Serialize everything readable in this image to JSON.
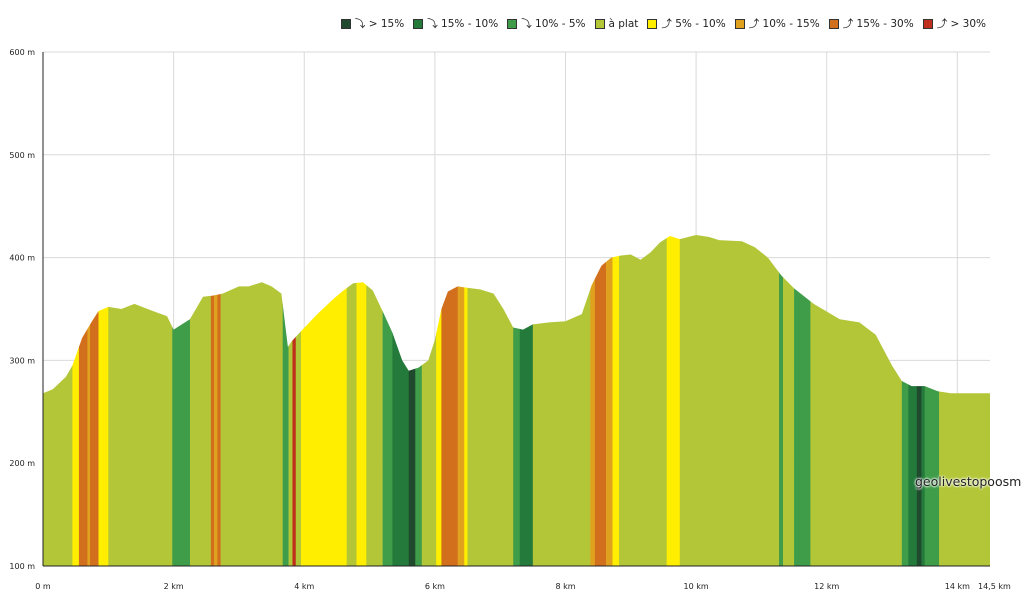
{
  "legend": [
    {
      "label": "⤵ > 15%",
      "color": "#1f4a2e"
    },
    {
      "label": "⤵ 15% - 10%",
      "color": "#237a3a"
    },
    {
      "label": "⤵ 10% - 5%",
      "color": "#3f9c49"
    },
    {
      "label": "à plat",
      "color": "#b3c637"
    },
    {
      "label": "⤴ 5% - 10%",
      "color": "#ffee00"
    },
    {
      "label": "⤴ 10% - 15%",
      "color": "#e0a21e"
    },
    {
      "label": "⤴ 15% - 30%",
      "color": "#d26f1c"
    },
    {
      "label": "⤴ > 30%",
      "color": "#bf2f1b"
    }
  ],
  "watermark": "geolivestopoosm",
  "chart_data": {
    "type": "area",
    "title": "",
    "xlabel": "",
    "ylabel": "",
    "xlim": [
      0,
      14.5
    ],
    "ylim": [
      100,
      600
    ],
    "grid": true,
    "legend_position": "top-right",
    "y_ticks": [
      {
        "value": 100,
        "label": "100 m"
      },
      {
        "value": 200,
        "label": "200 m"
      },
      {
        "value": 300,
        "label": "300 m"
      },
      {
        "value": 400,
        "label": "400 m"
      },
      {
        "value": 500,
        "label": "500 m"
      },
      {
        "value": 600,
        "label": "600 m"
      }
    ],
    "x_ticks": [
      {
        "value": 0,
        "label": "0 m"
      },
      {
        "value": 2,
        "label": "2 km"
      },
      {
        "value": 4,
        "label": "4 km"
      },
      {
        "value": 6,
        "label": "6 km"
      },
      {
        "value": 8,
        "label": "8 km"
      },
      {
        "value": 10,
        "label": "10 km"
      },
      {
        "value": 12,
        "label": "12 km"
      },
      {
        "value": 14,
        "label": "14 km"
      },
      {
        "value": 14.5,
        "label": "14,5 km"
      }
    ],
    "profile_km": [
      0,
      0.15,
      0.35,
      0.45,
      0.6,
      0.75,
      0.85,
      1.0,
      1.2,
      1.4,
      1.6,
      1.9,
      2.0,
      2.25,
      2.45,
      2.6,
      2.75,
      3.0,
      3.15,
      3.35,
      3.5,
      3.65,
      3.75,
      3.8,
      3.9,
      4.05,
      4.2,
      4.45,
      4.6,
      4.75,
      4.9,
      5.05,
      5.2,
      5.35,
      5.5,
      5.6,
      5.75,
      5.9,
      6.0,
      6.1,
      6.2,
      6.35,
      6.45,
      6.7,
      6.9,
      7.05,
      7.2,
      7.35,
      7.5,
      7.75,
      8.0,
      8.25,
      8.4,
      8.55,
      8.7,
      8.85,
      9.0,
      9.15,
      9.3,
      9.45,
      9.6,
      9.75,
      10.0,
      10.2,
      10.35,
      10.7,
      10.9,
      11.1,
      11.3,
      11.5,
      11.8,
      12.2,
      12.5,
      12.75,
      13.0,
      13.15,
      13.3,
      13.5,
      13.7,
      13.9,
      14.1,
      14.5
    ],
    "profile_alt": [
      268,
      272,
      284,
      295,
      322,
      338,
      348,
      352,
      350,
      355,
      350,
      343,
      330,
      340,
      362,
      363,
      365,
      372,
      372,
      376,
      372,
      365,
      313,
      318,
      325,
      335,
      345,
      360,
      368,
      375,
      376,
      368,
      348,
      327,
      300,
      290,
      293,
      300,
      320,
      350,
      367,
      372,
      371,
      369,
      365,
      350,
      332,
      330,
      335,
      337,
      338,
      345,
      373,
      392,
      400,
      402,
      403,
      398,
      405,
      415,
      421,
      418,
      422,
      420,
      417,
      416,
      410,
      400,
      383,
      370,
      355,
      340,
      337,
      325,
      295,
      280,
      275,
      275,
      270,
      268,
      268,
      268
    ],
    "slope_segments": [
      {
        "from": 0,
        "to": 0.45,
        "class": "à plat"
      },
      {
        "from": 0.45,
        "to": 0.55,
        "class": "⤴ 5% - 10%"
      },
      {
        "from": 0.55,
        "to": 0.68,
        "class": "⤴ 15% - 30%"
      },
      {
        "from": 0.68,
        "to": 0.72,
        "class": "⤴ 10% - 15%"
      },
      {
        "from": 0.72,
        "to": 0.85,
        "class": "⤴ 15% - 30%"
      },
      {
        "from": 0.85,
        "to": 1.0,
        "class": "⤴ 5% - 10%"
      },
      {
        "from": 1.0,
        "to": 1.98,
        "class": "à plat"
      },
      {
        "from": 1.98,
        "to": 2.25,
        "class": "⤵ 10% - 5%"
      },
      {
        "from": 2.25,
        "to": 2.57,
        "class": "à plat"
      },
      {
        "from": 2.57,
        "to": 2.62,
        "class": "⤴ 15% - 30%"
      },
      {
        "from": 2.62,
        "to": 2.67,
        "class": "⤴ 10% - 15%"
      },
      {
        "from": 2.67,
        "to": 2.72,
        "class": "⤴ 15% - 30%"
      },
      {
        "from": 2.72,
        "to": 3.67,
        "class": "à plat"
      },
      {
        "from": 3.67,
        "to": 3.76,
        "class": "⤵ 10% - 5%"
      },
      {
        "from": 3.76,
        "to": 3.82,
        "class": "à plat"
      },
      {
        "from": 3.82,
        "to": 3.87,
        "class": "⤴ > 30%"
      },
      {
        "from": 3.87,
        "to": 3.95,
        "class": "à plat"
      },
      {
        "from": 3.95,
        "to": 4.65,
        "class": "⤴ 5% - 10%"
      },
      {
        "from": 4.65,
        "to": 4.8,
        "class": "à plat"
      },
      {
        "from": 4.8,
        "to": 4.95,
        "class": "⤴ 5% - 10%"
      },
      {
        "from": 4.95,
        "to": 5.2,
        "class": "à plat"
      },
      {
        "from": 5.2,
        "to": 5.35,
        "class": "⤵ 10% - 5%"
      },
      {
        "from": 5.35,
        "to": 5.6,
        "class": "⤵ 15% - 10%"
      },
      {
        "from": 5.6,
        "to": 5.7,
        "class": "⤵ > 15%"
      },
      {
        "from": 5.7,
        "to": 5.8,
        "class": "⤵ 10% - 5%"
      },
      {
        "from": 5.8,
        "to": 6.02,
        "class": "à plat"
      },
      {
        "from": 6.02,
        "to": 6.1,
        "class": "⤴ 5% - 10%"
      },
      {
        "from": 6.1,
        "to": 6.35,
        "class": "⤴ 15% - 30%"
      },
      {
        "from": 6.35,
        "to": 6.45,
        "class": "⤴ 10% - 15%"
      },
      {
        "from": 6.45,
        "to": 6.5,
        "class": "⤴ 5% - 10%"
      },
      {
        "from": 6.5,
        "to": 7.2,
        "class": "à plat"
      },
      {
        "from": 7.2,
        "to": 7.3,
        "class": "⤵ 10% - 5%"
      },
      {
        "from": 7.3,
        "to": 7.5,
        "class": "⤵ 15% - 10%"
      },
      {
        "from": 7.5,
        "to": 8.38,
        "class": "à plat"
      },
      {
        "from": 8.38,
        "to": 8.45,
        "class": "⤴ 10% - 15%"
      },
      {
        "from": 8.45,
        "to": 8.62,
        "class": "⤴ 15% - 30%"
      },
      {
        "from": 8.62,
        "to": 8.72,
        "class": "⤴ 10% - 15%"
      },
      {
        "from": 8.72,
        "to": 8.82,
        "class": "⤴ 5% - 10%"
      },
      {
        "from": 8.82,
        "to": 9.55,
        "class": "à plat"
      },
      {
        "from": 9.55,
        "to": 9.75,
        "class": "⤴ 5% - 10%"
      },
      {
        "from": 9.75,
        "to": 11.27,
        "class": "à plat"
      },
      {
        "from": 11.27,
        "to": 11.33,
        "class": "⤵ 10% - 5%"
      },
      {
        "from": 11.33,
        "to": 11.5,
        "class": "à plat"
      },
      {
        "from": 11.5,
        "to": 11.75,
        "class": "⤵ 10% - 5%"
      },
      {
        "from": 11.75,
        "to": 13.15,
        "class": "à plat"
      },
      {
        "from": 13.15,
        "to": 13.25,
        "class": "⤵ 10% - 5%"
      },
      {
        "from": 13.25,
        "to": 13.38,
        "class": "⤵ 15% - 10%"
      },
      {
        "from": 13.38,
        "to": 13.45,
        "class": "⤵ > 15%"
      },
      {
        "from": 13.45,
        "to": 13.5,
        "class": "⤵ 15% - 10%"
      },
      {
        "from": 13.5,
        "to": 13.72,
        "class": "⤵ 10% - 5%"
      },
      {
        "from": 13.72,
        "to": 14.5,
        "class": "à plat"
      }
    ]
  }
}
